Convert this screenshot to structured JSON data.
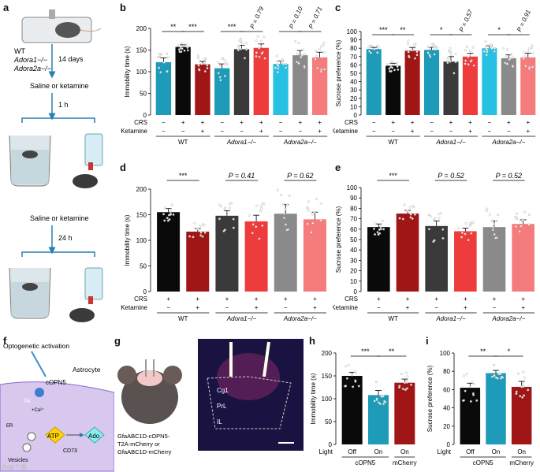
{
  "panels": {
    "a": "a",
    "b": "b",
    "c": "c",
    "d": "d",
    "e": "e",
    "f": "f",
    "g": "g",
    "h": "h",
    "i": "i"
  },
  "colors": {
    "black": "#0a0a0a",
    "darkred": "#a01616",
    "teal": "#1e9bb8",
    "darkgray": "#3a3a3a",
    "red": "#ee3c3c",
    "cyan": "#26c1e2",
    "gray": "#8a8a8a",
    "salmon": "#f47c7c",
    "midgray": "#555555",
    "pink": "#f08a8a"
  },
  "schematic_a": {
    "genotypes": [
      "WT",
      "Adora1−/−",
      "Adora2a−/−"
    ],
    "step1": "14 days",
    "step2": "Saline or ketamine",
    "step3": "1 h",
    "step4": "Saline or ketamine",
    "step5": "24 h"
  },
  "schematic_f": {
    "title": "Optogenetic activation",
    "cell": "Astrocyte",
    "channel": "cOPN5",
    "gq": "Gq",
    "ca": "+Ca²⁺",
    "er": "ER",
    "atp": "ATP",
    "enzyme": "CD73",
    "ado": "Ado",
    "vesicles": "Vesicles"
  },
  "schematic_g": {
    "construct1": "GfaABC1D-cOPN5-",
    "construct2": "T2A-mCherry or",
    "construct3": "GfaABC1D-mCherry",
    "regions": [
      "Cg1",
      "PrL",
      "IL"
    ]
  },
  "watermark": "你高个患",
  "chart_data": [
    {
      "id": "b",
      "type": "bar",
      "ylabel": "Immobility time (s)",
      "ylim": [
        0,
        200
      ],
      "yticks": [
        0,
        50,
        100,
        150,
        200
      ],
      "categories": [
        "WT-1",
        "WT-2",
        "WT-3",
        "A1-1",
        "A1-2",
        "A1-3",
        "A2a-1",
        "A2a-2",
        "A2a-3"
      ],
      "values": [
        122,
        157,
        117,
        108,
        152,
        155,
        118,
        138,
        133
      ],
      "errors": [
        10,
        5,
        7,
        10,
        9,
        9,
        7,
        11,
        12
      ],
      "colors": [
        "#1e9bb8",
        "#0a0a0a",
        "#a01616",
        "#1e9bb8",
        "#3a3a3a",
        "#ee3c3c",
        "#26c1e2",
        "#8a8a8a",
        "#f47c7c"
      ],
      "factor_rows": [
        {
          "label": "CRS",
          "values": [
            "−",
            "+",
            "+",
            "−",
            "+",
            "+",
            "−",
            "+",
            "+"
          ]
        },
        {
          "label": "Ketamine",
          "values": [
            "−",
            "−",
            "+",
            "−",
            "−",
            "+",
            "−",
            "−",
            "+"
          ]
        }
      ],
      "groups": [
        {
          "label": "WT",
          "from": 0,
          "to": 2
        },
        {
          "label": "Adora1−/−",
          "from": 3,
          "to": 5
        },
        {
          "label": "Adora2a−/−",
          "from": 6,
          "to": 8
        }
      ],
      "annotations": [
        {
          "from": 0,
          "to": 1,
          "text": "**",
          "rotated": false
        },
        {
          "from": 1,
          "to": 2,
          "text": "***",
          "rotated": false
        },
        {
          "from": 3,
          "to": 4,
          "text": "***",
          "rotated": false
        },
        {
          "from": 4,
          "to": 5,
          "text": "P = 0.79",
          "rotated": true
        },
        {
          "from": 6,
          "to": 7,
          "text": "P = 0.10",
          "rotated": true
        },
        {
          "from": 7,
          "to": 8,
          "text": "P = 0.71",
          "rotated": true
        }
      ]
    },
    {
      "id": "c",
      "type": "bar",
      "ylabel": "Sucrose preference (%)",
      "ylim": [
        0,
        100
      ],
      "yticks": [
        0,
        10,
        20,
        30,
        40,
        50,
        60,
        70,
        80,
        90,
        100
      ],
      "categories": [
        "WT-1",
        "WT-2",
        "WT-3",
        "A1-1",
        "A1-2",
        "A1-3",
        "A2a-1",
        "A2a-2",
        "A2a-3"
      ],
      "values": [
        79,
        59,
        77,
        78,
        64,
        70,
        80,
        68,
        69
      ],
      "errors": [
        2,
        3,
        4,
        3,
        6,
        4,
        3,
        4,
        5
      ],
      "colors": [
        "#1e9bb8",
        "#0a0a0a",
        "#a01616",
        "#1e9bb8",
        "#3a3a3a",
        "#ee3c3c",
        "#26c1e2",
        "#8a8a8a",
        "#f47c7c"
      ],
      "factor_rows": [
        {
          "label": "CRS",
          "values": [
            "−",
            "+",
            "+",
            "−",
            "+",
            "+",
            "−",
            "+",
            "+"
          ]
        },
        {
          "label": "Ketamine",
          "values": [
            "−",
            "−",
            "+",
            "−",
            "−",
            "+",
            "−",
            "−",
            "+"
          ]
        }
      ],
      "groups": [
        {
          "label": "WT",
          "from": 0,
          "to": 2
        },
        {
          "label": "Adora1−/−",
          "from": 3,
          "to": 5
        },
        {
          "label": "Adora2a−/−",
          "from": 6,
          "to": 8
        }
      ],
      "annotations": [
        {
          "from": 0,
          "to": 1,
          "text": "***",
          "rotated": false
        },
        {
          "from": 1,
          "to": 2,
          "text": "**",
          "rotated": false
        },
        {
          "from": 3,
          "to": 4,
          "text": "*",
          "rotated": false
        },
        {
          "from": 4,
          "to": 5,
          "text": "P = 0.57",
          "rotated": true
        },
        {
          "from": 6,
          "to": 7,
          "text": "*",
          "rotated": false
        },
        {
          "from": 7,
          "to": 8,
          "text": "P = 0.91",
          "rotated": true
        }
      ]
    },
    {
      "id": "d",
      "type": "bar",
      "ylabel": "Immobility time (s)",
      "ylim": [
        0,
        200
      ],
      "yticks": [
        0,
        50,
        100,
        150,
        200
      ],
      "categories": [
        "WT-1",
        "WT-2",
        "A1-1",
        "A1-2",
        "A2a-1",
        "A2a-2"
      ],
      "values": [
        155,
        117,
        148,
        137,
        152,
        141
      ],
      "errors": [
        7,
        6,
        10,
        12,
        18,
        14
      ],
      "colors": [
        "#0a0a0a",
        "#a01616",
        "#3a3a3a",
        "#ee3c3c",
        "#8a8a8a",
        "#f47c7c"
      ],
      "factor_rows": [
        {
          "label": "CRS",
          "values": [
            "+",
            "+",
            "+",
            "+",
            "+",
            "+"
          ]
        },
        {
          "label": "Ketamine",
          "values": [
            "−",
            "+",
            "−",
            "+",
            "−",
            "+"
          ]
        }
      ],
      "groups": [
        {
          "label": "WT",
          "from": 0,
          "to": 1
        },
        {
          "label": "Adora1−/−",
          "from": 2,
          "to": 3
        },
        {
          "label": "Adora2a−/−",
          "from": 4,
          "to": 5
        }
      ],
      "annotations": [
        {
          "from": 0,
          "to": 1,
          "text": "***",
          "rotated": false
        },
        {
          "from": 2,
          "to": 3,
          "text": "P = 0.41",
          "rotated": false
        },
        {
          "from": 4,
          "to": 5,
          "text": "P = 0.62",
          "rotated": false
        }
      ]
    },
    {
      "id": "e",
      "type": "bar",
      "ylabel": "Sucrose preference (%)",
      "ylim": [
        0,
        100
      ],
      "yticks": [
        0,
        10,
        20,
        30,
        40,
        50,
        60,
        70,
        80,
        90,
        100
      ],
      "categories": [
        "WT-1",
        "WT-2",
        "A1-1",
        "A1-2",
        "A2a-1",
        "A2a-2"
      ],
      "values": [
        62,
        75,
        63,
        58,
        62,
        65
      ],
      "errors": [
        3,
        3,
        5,
        3,
        6,
        4
      ],
      "colors": [
        "#0a0a0a",
        "#a01616",
        "#3a3a3a",
        "#ee3c3c",
        "#8a8a8a",
        "#f47c7c"
      ],
      "factor_rows": [
        {
          "label": "CRS",
          "values": [
            "+",
            "+",
            "+",
            "+",
            "+",
            "+"
          ]
        },
        {
          "label": "Ketamine",
          "values": [
            "−",
            "+",
            "−",
            "+",
            "−",
            "+"
          ]
        }
      ],
      "groups": [
        {
          "label": "WT",
          "from": 0,
          "to": 1
        },
        {
          "label": "Adora1−/−",
          "from": 2,
          "to": 3
        },
        {
          "label": "Adora2a−/−",
          "from": 4,
          "to": 5
        }
      ],
      "annotations": [
        {
          "from": 0,
          "to": 1,
          "text": "***",
          "rotated": false
        },
        {
          "from": 2,
          "to": 3,
          "text": "P = 0.52",
          "rotated": false
        },
        {
          "from": 4,
          "to": 5,
          "text": "P = 0.52",
          "rotated": false
        }
      ]
    },
    {
      "id": "h",
      "type": "bar",
      "ylabel": "Immobility time (s)",
      "ylim": [
        0,
        200
      ],
      "yticks": [
        0,
        50,
        100,
        150,
        200
      ],
      "categories": [
        "cOPN5-Off",
        "cOPN5-On",
        "mCherry-On"
      ],
      "values": [
        150,
        108,
        135
      ],
      "errors": [
        8,
        10,
        8
      ],
      "colors": [
        "#0a0a0a",
        "#1e9bb8",
        "#a01616"
      ],
      "factor_rows": [
        {
          "label": "Light",
          "values": [
            "Off",
            "On",
            "On"
          ]
        }
      ],
      "groups": [
        {
          "label": "cOPN5",
          "from": 0,
          "to": 1
        },
        {
          "label": "mCherry",
          "from": 2,
          "to": 2
        }
      ],
      "annotations": [
        {
          "from": 0,
          "to": 1,
          "text": "***",
          "rotated": false
        },
        {
          "from": 1,
          "to": 2,
          "text": "**",
          "rotated": false
        }
      ]
    },
    {
      "id": "i",
      "type": "bar",
      "ylabel": "Sucrose preference (%)",
      "ylim": [
        0,
        100
      ],
      "yticks": [
        0,
        20,
        40,
        60,
        80,
        100
      ],
      "categories": [
        "cOPN5-Off",
        "cOPN5-On",
        "mCherry-On"
      ],
      "values": [
        62,
        78,
        63
      ],
      "errors": [
        5,
        3,
        6
      ],
      "colors": [
        "#0a0a0a",
        "#1e9bb8",
        "#a01616"
      ],
      "factor_rows": [
        {
          "label": "Light",
          "values": [
            "Off",
            "On",
            "On"
          ]
        }
      ],
      "groups": [
        {
          "label": "cOPN5",
          "from": 0,
          "to": 1
        },
        {
          "label": "mCherry",
          "from": 2,
          "to": 2
        }
      ],
      "annotations": [
        {
          "from": 0,
          "to": 1,
          "text": "**",
          "rotated": false
        },
        {
          "from": 1,
          "to": 2,
          "text": "*",
          "rotated": false
        }
      ]
    }
  ]
}
